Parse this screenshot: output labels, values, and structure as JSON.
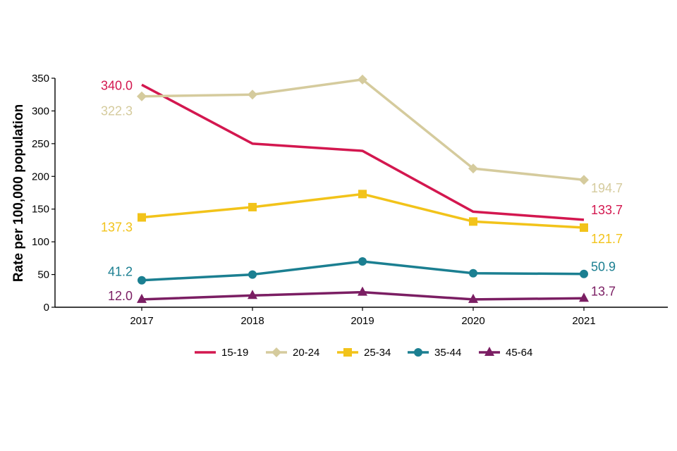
{
  "chart_data": {
    "type": "line",
    "categories": [
      "2017",
      "2018",
      "2019",
      "2020",
      "2021"
    ],
    "ylabel": "Rate per 100,000 population",
    "ylim": [
      0,
      350
    ],
    "yticks": [
      0,
      50,
      100,
      150,
      200,
      250,
      300,
      350
    ],
    "grid": false,
    "legend_position": "bottom",
    "series": [
      {
        "name": "15-19",
        "color": "#d3174f",
        "marker": "none",
        "values": [
          340.0,
          250,
          239,
          146,
          133.7
        ],
        "labels": {
          "first": "340.0",
          "last": "133.7"
        }
      },
      {
        "name": "20-24",
        "color": "#d5cb9d",
        "marker": "diamond",
        "values": [
          322.3,
          325,
          348,
          212,
          194.7
        ],
        "labels": {
          "first": "322.3",
          "last": "194.7"
        }
      },
      {
        "name": "25-34",
        "color": "#f2c31a",
        "marker": "square",
        "values": [
          137.3,
          153,
          173,
          131,
          121.7
        ],
        "labels": {
          "first": "137.3",
          "last": "121.7"
        }
      },
      {
        "name": "35-44",
        "color": "#1b7f91",
        "marker": "circle",
        "values": [
          41.2,
          50,
          70,
          52,
          50.9
        ],
        "labels": {
          "first": "41.2",
          "last": "50.9"
        }
      },
      {
        "name": "45-64",
        "color": "#7b1e63",
        "marker": "triangle",
        "values": [
          12.0,
          18,
          23,
          12,
          13.7
        ],
        "labels": {
          "first": "12.0",
          "last": "13.7"
        }
      }
    ]
  }
}
